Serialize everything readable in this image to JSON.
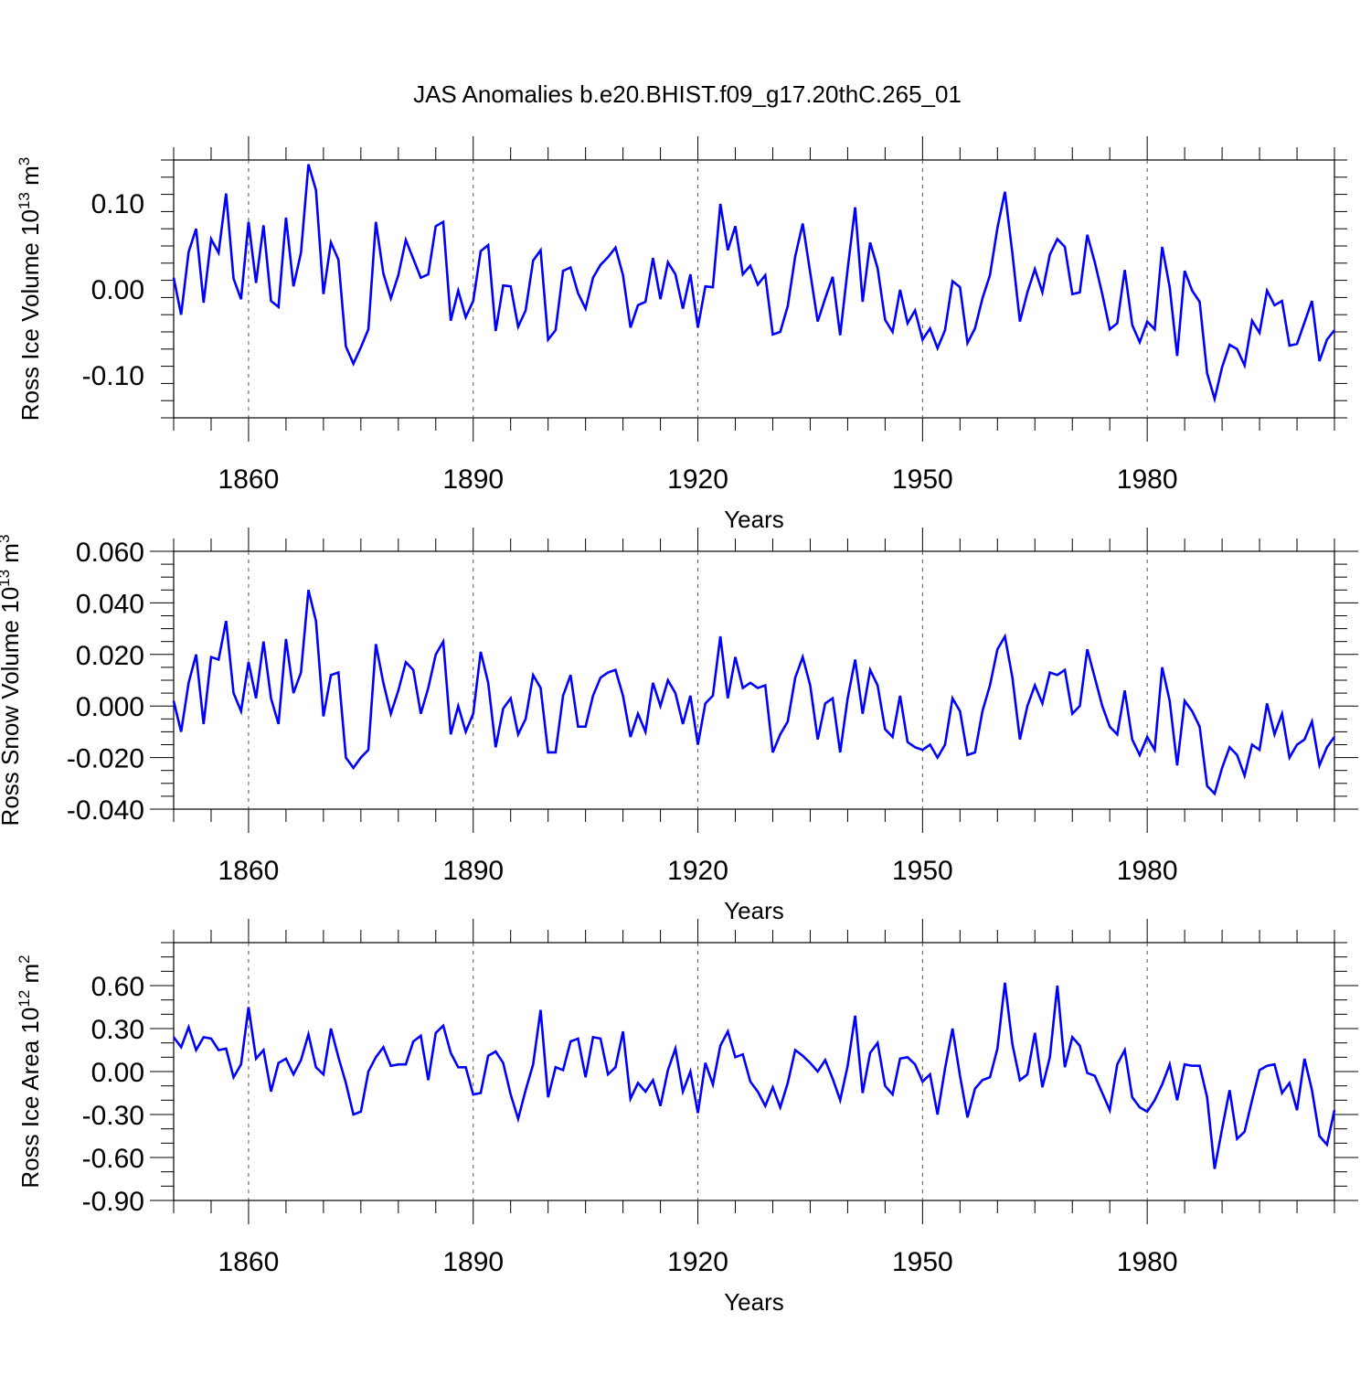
{
  "figure": {
    "title": "JAS Anomalies b.e20.BHIST.f09_g17.20thC.265_01",
    "line_color": "#0000ff"
  },
  "chart_data": [
    {
      "type": "line",
      "title": "",
      "xlabel": "Years",
      "ylabel": "Ross Ice Volume 10",
      "ylabel_exponent": "13",
      "ylabel_unit": " m",
      "ylabel_unit_exponent": "3",
      "xlim": [
        1850,
        2005
      ],
      "ylim": [
        -0.15,
        0.15
      ],
      "x_ticks": [
        1860,
        1890,
        1920,
        1950,
        1980
      ],
      "x_tick_labels": [
        "1860",
        "1890",
        "1920",
        "1950",
        "1980"
      ],
      "y_ticks": [
        -0.1,
        0.0,
        0.1
      ],
      "y_tick_labels": [
        "-0.10",
        "0.00",
        "0.10"
      ],
      "y_minor_step": 0.02,
      "x_minor_step": 5,
      "grid": "vertical dashed at major x ticks",
      "x": [
        1850,
        1851,
        1852,
        1853,
        1854,
        1855,
        1856,
        1857,
        1858,
        1859,
        1860,
        1861,
        1862,
        1863,
        1864,
        1865,
        1866,
        1867,
        1868,
        1869,
        1870,
        1871,
        1872,
        1873,
        1874,
        1875,
        1876,
        1877,
        1878,
        1879,
        1880,
        1881,
        1882,
        1883,
        1884,
        1885,
        1886,
        1887,
        1888,
        1889,
        1890,
        1891,
        1892,
        1893,
        1894,
        1895,
        1896,
        1897,
        1898,
        1899,
        1900,
        1901,
        1902,
        1903,
        1904,
        1905,
        1906,
        1907,
        1908,
        1909,
        1910,
        1911,
        1912,
        1913,
        1914,
        1915,
        1916,
        1917,
        1918,
        1919,
        1920,
        1921,
        1922,
        1923,
        1924,
        1925,
        1926,
        1927,
        1928,
        1929,
        1930,
        1931,
        1932,
        1933,
        1934,
        1935,
        1936,
        1937,
        1938,
        1939,
        1940,
        1941,
        1942,
        1943,
        1944,
        1945,
        1946,
        1947,
        1948,
        1949,
        1950,
        1951,
        1952,
        1953,
        1954,
        1955,
        1956,
        1957,
        1958,
        1959,
        1960,
        1961,
        1962,
        1963,
        1964,
        1965,
        1966,
        1967,
        1968,
        1969,
        1970,
        1971,
        1972,
        1973,
        1974,
        1975,
        1976,
        1977,
        1978,
        1979,
        1980,
        1981,
        1982,
        1983,
        1984,
        1985,
        1986,
        1987,
        1988,
        1989,
        1990,
        1991,
        1992,
        1993,
        1994,
        1995,
        1996,
        1997,
        1998,
        1999,
        2000,
        2001,
        2002,
        2003,
        2004,
        2005
      ],
      "series": [
        {
          "values": [
            0.013,
            -0.03,
            0.043,
            0.07,
            -0.016,
            0.058,
            0.042,
            0.111,
            0.012,
            -0.012,
            0.078,
            0.007,
            0.074,
            -0.014,
            -0.021,
            0.083,
            0.003,
            0.042,
            0.145,
            0.115,
            -0.006,
            0.054,
            0.034,
            -0.067,
            -0.087,
            -0.068,
            -0.047,
            0.078,
            0.018,
            -0.011,
            0.016,
            0.057,
            0.035,
            0.013,
            0.017,
            0.073,
            0.078,
            -0.037,
            -0.002,
            -0.033,
            -0.014,
            0.044,
            0.051,
            -0.049,
            0.004,
            0.003,
            -0.044,
            -0.025,
            0.033,
            0.045,
            -0.059,
            -0.048,
            0.021,
            0.025,
            -0.005,
            -0.023,
            0.013,
            0.028,
            0.037,
            0.048,
            0.016,
            -0.045,
            -0.019,
            -0.015,
            0.036,
            -0.012,
            0.031,
            0.017,
            -0.023,
            0.017,
            -0.045,
            0.003,
            0.002,
            0.099,
            0.045,
            0.073,
            0.017,
            0.027,
            0.005,
            0.016,
            -0.053,
            -0.05,
            -0.02,
            0.038,
            0.076,
            0.019,
            -0.038,
            -0.011,
            0.014,
            -0.054,
            0.023,
            0.095,
            -0.015,
            0.054,
            0.024,
            -0.036,
            -0.05,
            -0.001,
            -0.04,
            -0.025,
            -0.059,
            -0.046,
            -0.069,
            -0.048,
            0.009,
            0.002,
            -0.063,
            -0.046,
            -0.011,
            0.016,
            0.071,
            0.113,
            0.041,
            -0.038,
            -0.004,
            0.023,
            -0.004,
            0.04,
            0.058,
            0.049,
            -0.006,
            -0.004,
            0.063,
            0.031,
            -0.006,
            -0.047,
            -0.04,
            0.022,
            -0.042,
            -0.062,
            -0.038,
            -0.047,
            0.049,
            0.002,
            -0.078,
            0.021,
            -0.002,
            -0.015,
            -0.098,
            -0.128,
            -0.091,
            -0.065,
            -0.07,
            -0.089,
            -0.037,
            -0.051,
            -0.002,
            -0.019,
            -0.014,
            -0.066,
            -0.064,
            -0.039,
            -0.014,
            -0.084,
            -0.059,
            -0.048
          ]
        }
      ]
    },
    {
      "type": "line",
      "title": "",
      "xlabel": "Years",
      "ylabel": "Ross Snow Volume 10",
      "ylabel_exponent": "13",
      "ylabel_unit": " m",
      "ylabel_unit_exponent": "3",
      "xlim": [
        1850,
        2005
      ],
      "ylim": [
        -0.04,
        0.06
      ],
      "x_ticks": [
        1860,
        1890,
        1920,
        1950,
        1980
      ],
      "x_tick_labels": [
        "1860",
        "1890",
        "1920",
        "1950",
        "1980"
      ],
      "y_ticks": [
        -0.04,
        -0.02,
        0.0,
        0.02,
        0.04,
        0.06
      ],
      "y_tick_labels": [
        "-0.040",
        "-0.020",
        "0.000",
        "0.020",
        "0.040",
        "0.060"
      ],
      "y_minor_step": 0.005,
      "x_minor_step": 5,
      "grid": "vertical dashed at major x ticks",
      "x": [
        1850,
        1851,
        1852,
        1853,
        1854,
        1855,
        1856,
        1857,
        1858,
        1859,
        1860,
        1861,
        1862,
        1863,
        1864,
        1865,
        1866,
        1867,
        1868,
        1869,
        1870,
        1871,
        1872,
        1873,
        1874,
        1875,
        1876,
        1877,
        1878,
        1879,
        1880,
        1881,
        1882,
        1883,
        1884,
        1885,
        1886,
        1887,
        1888,
        1889,
        1890,
        1891,
        1892,
        1893,
        1894,
        1895,
        1896,
        1897,
        1898,
        1899,
        1900,
        1901,
        1902,
        1903,
        1904,
        1905,
        1906,
        1907,
        1908,
        1909,
        1910,
        1911,
        1912,
        1913,
        1914,
        1915,
        1916,
        1917,
        1918,
        1919,
        1920,
        1921,
        1922,
        1923,
        1924,
        1925,
        1926,
        1927,
        1928,
        1929,
        1930,
        1931,
        1932,
        1933,
        1934,
        1935,
        1936,
        1937,
        1938,
        1939,
        1940,
        1941,
        1942,
        1943,
        1944,
        1945,
        1946,
        1947,
        1948,
        1949,
        1950,
        1951,
        1952,
        1953,
        1954,
        1955,
        1956,
        1957,
        1958,
        1959,
        1960,
        1961,
        1962,
        1963,
        1964,
        1965,
        1966,
        1967,
        1968,
        1969,
        1970,
        1971,
        1972,
        1973,
        1974,
        1975,
        1976,
        1977,
        1978,
        1979,
        1980,
        1981,
        1982,
        1983,
        1984,
        1985,
        1986,
        1987,
        1988,
        1989,
        1990,
        1991,
        1992,
        1993,
        1994,
        1995,
        1996,
        1997,
        1998,
        1999,
        2000,
        2001,
        2002,
        2003,
        2004,
        2005
      ],
      "series": [
        {
          "values": [
            0.002,
            -0.01,
            0.009,
            0.02,
            -0.007,
            0.019,
            0.018,
            0.033,
            0.005,
            -0.002,
            0.017,
            0.003,
            0.025,
            0.003,
            -0.007,
            0.026,
            0.005,
            0.013,
            0.045,
            0.033,
            -0.004,
            0.012,
            0.013,
            -0.02,
            -0.024,
            -0.02,
            -0.017,
            0.024,
            0.009,
            -0.003,
            0.006,
            0.017,
            0.014,
            -0.003,
            0.007,
            0.02,
            0.025,
            -0.011,
            0.0,
            -0.01,
            -0.003,
            0.021,
            0.009,
            -0.016,
            -0.001,
            0.003,
            -0.011,
            -0.005,
            0.012,
            0.007,
            -0.018,
            -0.018,
            0.004,
            0.012,
            -0.008,
            -0.008,
            0.004,
            0.011,
            0.013,
            0.014,
            0.004,
            -0.012,
            -0.003,
            -0.01,
            0.009,
            0.0,
            0.01,
            0.005,
            -0.007,
            0.004,
            -0.015,
            0.001,
            0.004,
            0.027,
            0.003,
            0.019,
            0.007,
            0.009,
            0.007,
            0.008,
            -0.018,
            -0.011,
            -0.006,
            0.011,
            0.019,
            0.008,
            -0.013,
            0.001,
            0.003,
            -0.018,
            0.003,
            0.018,
            -0.003,
            0.014,
            0.008,
            -0.009,
            -0.012,
            0.004,
            -0.014,
            -0.016,
            -0.017,
            -0.015,
            -0.02,
            -0.015,
            0.003,
            -0.002,
            -0.019,
            -0.018,
            -0.002,
            0.008,
            0.022,
            0.027,
            0.011,
            -0.013,
            0.0,
            0.008,
            0.001,
            0.013,
            0.012,
            0.014,
            -0.003,
            0.0,
            0.022,
            0.011,
            0.0,
            -0.008,
            -0.011,
            0.006,
            -0.013,
            -0.019,
            -0.012,
            -0.017,
            0.015,
            0.002,
            -0.023,
            0.002,
            -0.002,
            -0.008,
            -0.031,
            -0.034,
            -0.024,
            -0.016,
            -0.019,
            -0.027,
            -0.015,
            -0.017,
            0.001,
            -0.011,
            -0.003,
            -0.02,
            -0.015,
            -0.013,
            -0.006,
            -0.023,
            -0.016,
            -0.012
          ]
        }
      ]
    },
    {
      "type": "line",
      "title": "",
      "xlabel": "Years",
      "ylabel": "Ross Ice Area 10",
      "ylabel_exponent": "12",
      "ylabel_unit": " m",
      "ylabel_unit_exponent": "2",
      "xlim": [
        1850,
        2005
      ],
      "ylim": [
        -0.9,
        0.9
      ],
      "x_ticks": [
        1860,
        1890,
        1920,
        1950,
        1980
      ],
      "x_tick_labels": [
        "1860",
        "1890",
        "1920",
        "1950",
        "1980"
      ],
      "y_ticks": [
        -0.9,
        -0.6,
        -0.3,
        0.0,
        0.3,
        0.6
      ],
      "y_tick_labels": [
        "-0.90",
        "-0.60",
        "-0.30",
        "0.00",
        "0.30",
        "0.60"
      ],
      "y_minor_step": 0.1,
      "x_minor_step": 5,
      "grid": "vertical dashed at major x ticks",
      "x": [
        1850,
        1851,
        1852,
        1853,
        1854,
        1855,
        1856,
        1857,
        1858,
        1859,
        1860,
        1861,
        1862,
        1863,
        1864,
        1865,
        1866,
        1867,
        1868,
        1869,
        1870,
        1871,
        1872,
        1873,
        1874,
        1875,
        1876,
        1877,
        1878,
        1879,
        1880,
        1881,
        1882,
        1883,
        1884,
        1885,
        1886,
        1887,
        1888,
        1889,
        1890,
        1891,
        1892,
        1893,
        1894,
        1895,
        1896,
        1897,
        1898,
        1899,
        1900,
        1901,
        1902,
        1903,
        1904,
        1905,
        1906,
        1907,
        1908,
        1909,
        1910,
        1911,
        1912,
        1913,
        1914,
        1915,
        1916,
        1917,
        1918,
        1919,
        1920,
        1921,
        1922,
        1923,
        1924,
        1925,
        1926,
        1927,
        1928,
        1929,
        1930,
        1931,
        1932,
        1933,
        1934,
        1935,
        1936,
        1937,
        1938,
        1939,
        1940,
        1941,
        1942,
        1943,
        1944,
        1945,
        1946,
        1947,
        1948,
        1949,
        1950,
        1951,
        1952,
        1953,
        1954,
        1955,
        1956,
        1957,
        1958,
        1959,
        1960,
        1961,
        1962,
        1963,
        1964,
        1965,
        1966,
        1967,
        1968,
        1969,
        1970,
        1971,
        1972,
        1973,
        1974,
        1975,
        1976,
        1977,
        1978,
        1979,
        1980,
        1981,
        1982,
        1983,
        1984,
        1985,
        1986,
        1987,
        1988,
        1989,
        1990,
        1991,
        1992,
        1993,
        1994,
        1995,
        1996,
        1997,
        1998,
        1999,
        2000,
        2001,
        2002,
        2003,
        2004,
        2005
      ],
      "series": [
        {
          "values": [
            0.24,
            0.17,
            0.31,
            0.15,
            0.24,
            0.23,
            0.15,
            0.16,
            -0.04,
            0.05,
            0.45,
            0.09,
            0.15,
            -0.14,
            0.06,
            0.09,
            -0.02,
            0.08,
            0.26,
            0.03,
            -0.02,
            0.3,
            0.1,
            -0.08,
            -0.3,
            -0.28,
            0.0,
            0.1,
            0.17,
            0.04,
            0.05,
            0.05,
            0.21,
            0.25,
            -0.06,
            0.27,
            0.32,
            0.13,
            0.03,
            0.03,
            -0.16,
            -0.15,
            0.11,
            0.14,
            0.06,
            -0.16,
            -0.33,
            -0.13,
            0.05,
            0.43,
            -0.18,
            0.03,
            0.01,
            0.21,
            0.23,
            -0.04,
            0.24,
            0.23,
            -0.02,
            0.03,
            0.28,
            -0.19,
            -0.08,
            -0.14,
            -0.06,
            -0.24,
            0.01,
            0.16,
            -0.14,
            0.0,
            -0.29,
            0.06,
            -0.09,
            0.18,
            0.28,
            0.1,
            0.12,
            -0.07,
            -0.14,
            -0.24,
            -0.11,
            -0.25,
            -0.08,
            0.15,
            0.11,
            0.06,
            0.0,
            0.08,
            -0.05,
            -0.2,
            0.04,
            0.39,
            -0.15,
            0.13,
            0.2,
            -0.1,
            -0.16,
            0.09,
            0.1,
            0.05,
            -0.07,
            -0.02,
            -0.3,
            0.02,
            0.3,
            -0.03,
            -0.32,
            -0.12,
            -0.06,
            -0.04,
            0.16,
            0.62,
            0.19,
            -0.06,
            -0.02,
            0.27,
            -0.11,
            0.1,
            0.6,
            0.03,
            0.24,
            0.18,
            -0.01,
            -0.03,
            -0.15,
            -0.27,
            0.05,
            0.15,
            -0.18,
            -0.25,
            -0.28,
            -0.2,
            -0.09,
            0.05,
            -0.2,
            0.05,
            0.04,
            0.04,
            -0.18,
            -0.68,
            -0.4,
            -0.13,
            -0.47,
            -0.42,
            -0.2,
            0.01,
            0.04,
            0.05,
            -0.15,
            -0.08,
            -0.27,
            0.09,
            -0.13,
            -0.45,
            -0.51,
            -0.27
          ]
        }
      ]
    }
  ]
}
